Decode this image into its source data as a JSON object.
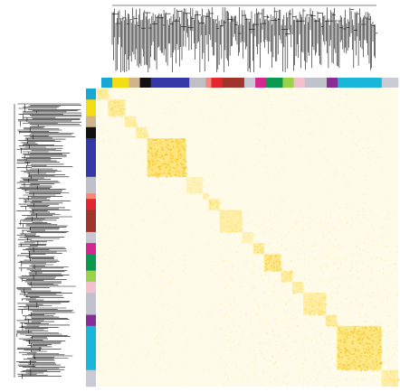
{
  "chart_data": {
    "type": "heatmap",
    "title": "",
    "xlabel": "",
    "ylabel": "",
    "description_of_encoding": "",
    "color_scale": {
      "low": "#fffbe9",
      "mid": "#fde57a",
      "high": "#f2b705"
    },
    "modules": [
      {
        "color": "#17a8d6",
        "size": 2
      },
      {
        "color": "#f3de14",
        "size": 3
      },
      {
        "color": "#d2b48c",
        "size": 2
      },
      {
        "color": "#111111",
        "size": 2
      },
      {
        "color": "#3437a6",
        "size": 7
      },
      {
        "color": "#bfbfc8",
        "size": 3
      },
      {
        "color": "#f4897b",
        "size": 1
      },
      {
        "color": "#e3262d",
        "size": 2
      },
      {
        "color": "#a0342a",
        "size": 4
      },
      {
        "color": "#c8c8d2",
        "size": 2
      },
      {
        "color": "#d4278f",
        "size": 2
      },
      {
        "color": "#0a9a4f",
        "size": 3
      },
      {
        "color": "#9bd24a",
        "size": 2
      },
      {
        "color": "#f5bfcc",
        "size": 2
      },
      {
        "color": "#c0c2cc",
        "size": 4
      },
      {
        "color": "#8a2b96",
        "size": 2
      },
      {
        "color": "#18b6d8",
        "size": 8
      },
      {
        "color": "#c9cad4",
        "size": 3
      }
    ],
    "module_strength": [
      0.55,
      0.6,
      0.5,
      0.55,
      0.85,
      0.35,
      0.45,
      0.55,
      0.5,
      0.35,
      0.6,
      0.75,
      0.6,
      0.5,
      0.55,
      0.6,
      0.8,
      0.5
    ],
    "dendrogram": {
      "show_top": true,
      "show_left": true
    }
  }
}
